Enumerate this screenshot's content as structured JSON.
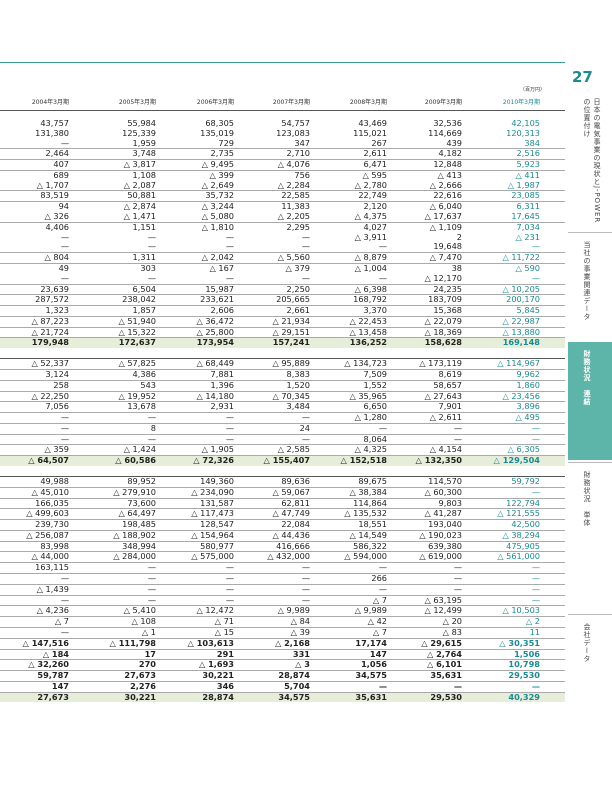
{
  "unit": "（百万円）",
  "headers": [
    "2004年3月期",
    "2005年3月期",
    "2006年3月期",
    "2007年3月期",
    "2008年3月期",
    "2009年3月期",
    "2010年3月期"
  ],
  "rows": [
    [
      "43,757",
      "55,984",
      "68,305",
      "54,757",
      "43,469",
      "32,536",
      "42,105"
    ],
    [
      "131,380",
      "125,339",
      "135,019",
      "123,083",
      "115,021",
      "114,669",
      "120,313"
    ],
    [
      "—",
      "1,959",
      "729",
      "347",
      "267",
      "439",
      "384"
    ],
    [
      "2,464",
      "3,748",
      "2,735",
      "2,710",
      "2,611",
      "4,182",
      "2,516"
    ],
    [
      "407",
      "△ 3,817",
      "△ 9,495",
      "△ 4,076",
      "6,471",
      "12,848",
      "5,923"
    ],
    [
      "689",
      "1,108",
      "△ 399",
      "756",
      "△ 595",
      "△ 413",
      "△ 411"
    ],
    [
      "△ 1,707",
      "△ 2,087",
      "△ 2,649",
      "△ 2,284",
      "△ 2,780",
      "△ 2,666",
      "△ 1,987"
    ],
    [
      "83,519",
      "50,881",
      "35,732",
      "22,585",
      "22,749",
      "22,616",
      "23,085"
    ],
    [
      "94",
      "△ 2,874",
      "△ 3,244",
      "11,383",
      "2,120",
      "△ 6,040",
      "6,311"
    ],
    [
      "△ 326",
      "△ 1,471",
      "△ 5,080",
      "△ 2,205",
      "△ 4,375",
      "△ 17,637",
      "17,645"
    ],
    [
      "4,406",
      "1,151",
      "△ 1,810",
      "2,295",
      "4,027",
      "△ 1,109",
      "7,034"
    ],
    [
      "—",
      "—",
      "—",
      "—",
      "△ 3,911",
      "2",
      "△ 231"
    ],
    [
      "—",
      "—",
      "—",
      "—",
      "—",
      "19,648",
      "—"
    ],
    [
      "△ 804",
      "1,311",
      "△ 2,042",
      "△ 5,560",
      "△ 8,879",
      "△ 7,470",
      "△ 11,722"
    ],
    [
      "49",
      "303",
      "△ 167",
      "△ 379",
      "△ 1,004",
      "38",
      "△ 590"
    ],
    [
      "—",
      "—",
      "—",
      "—",
      "—",
      "△ 12,170",
      "—"
    ],
    [
      "23,639",
      "6,504",
      "15,987",
      "2,250",
      "△ 6,398",
      "24,235",
      "△ 10,205"
    ],
    [
      "287,572",
      "238,042",
      "233,621",
      "205,665",
      "168,792",
      "183,709",
      "200,170"
    ],
    [
      "1,323",
      "1,857",
      "2,606",
      "2,661",
      "3,370",
      "15,368",
      "5,845"
    ],
    [
      "△ 87,223",
      "△ 51,940",
      "△ 36,472",
      "△ 21,934",
      "△ 22,453",
      "△ 22,079",
      "△ 22,987"
    ],
    [
      "△ 21,724",
      "△ 15,322",
      "△ 25,800",
      "△ 29,151",
      "△ 13,458",
      "△ 18,369",
      "△ 13,880"
    ],
    [
      "179,948",
      "172,637",
      "173,954",
      "157,241",
      "136,252",
      "158,628",
      "169,148"
    ],
    [
      "",
      "",
      "",
      "",
      "",
      "",
      ""
    ],
    [
      "△ 52,337",
      "△ 57,825",
      "△ 68,449",
      "△ 95,889",
      "△ 134,723",
      "△ 173,119",
      "△ 114,967"
    ],
    [
      "3,124",
      "4,386",
      "7,881",
      "8,383",
      "7,509",
      "8,619",
      "9,962"
    ],
    [
      "258",
      "543",
      "1,396",
      "1,520",
      "1,552",
      "58,657",
      "1,860"
    ],
    [
      "△ 22,250",
      "△ 19,952",
      "△ 14,180",
      "△ 70,345",
      "△ 35,965",
      "△ 27,643",
      "△ 23,456"
    ],
    [
      "7,056",
      "13,678",
      "2,931",
      "3,484",
      "6,650",
      "7,901",
      "3,896"
    ],
    [
      "—",
      "—",
      "—",
      "—",
      "△ 1,280",
      "△ 2,611",
      "△ 495"
    ],
    [
      "—",
      "8",
      "—",
      "24",
      "—",
      "—",
      "—"
    ],
    [
      "—",
      "—",
      "—",
      "—",
      "8,064",
      "—",
      "—"
    ],
    [
      "△ 359",
      "△ 1,424",
      "△ 1,905",
      "△ 2,585",
      "△ 4,325",
      "△ 4,154",
      "△ 6,305"
    ],
    [
      "△ 64,507",
      "△ 60,586",
      "△ 72,326",
      "△ 155,407",
      "△ 152,518",
      "△ 132,350",
      "△ 129,504"
    ],
    [
      "",
      "",
      "",
      "",
      "",
      "",
      ""
    ],
    [
      "49,988",
      "89,952",
      "149,360",
      "89,636",
      "89,675",
      "114,570",
      "59,792"
    ],
    [
      "△ 45,010",
      "△ 279,910",
      "△ 234,090",
      "△ 59,067",
      "△ 38,384",
      "△ 60,300",
      "—"
    ],
    [
      "166,035",
      "73,600",
      "131,587",
      "62,811",
      "114,864",
      "9,803",
      "122,794"
    ],
    [
      "△ 499,603",
      "△ 64,497",
      "△ 117,473",
      "△ 47,749",
      "△ 135,532",
      "△ 41,287",
      "△ 121,555"
    ],
    [
      "239,730",
      "198,485",
      "128,547",
      "22,084",
      "18,551",
      "193,040",
      "42,500"
    ],
    [
      "△ 256,087",
      "△ 188,902",
      "△ 154,964",
      "△ 44,436",
      "△ 14,549",
      "△ 190,023",
      "△ 38,294"
    ],
    [
      "83,998",
      "348,994",
      "580,977",
      "416,666",
      "586,322",
      "639,380",
      "475,905"
    ],
    [
      "△ 44,000",
      "△ 284,000",
      "△ 575,000",
      "△ 432,000",
      "△ 594,000",
      "△ 619,000",
      "△ 561,000"
    ],
    [
      "163,115",
      "—",
      "—",
      "—",
      "—",
      "—",
      "—"
    ],
    [
      "—",
      "—",
      "—",
      "—",
      "266",
      "—",
      "—"
    ],
    [
      "△ 1,439",
      "—",
      "—",
      "—",
      "—",
      "—",
      "—"
    ],
    [
      "—",
      "—",
      "—",
      "—",
      "△ 7",
      "△ 63,195",
      "—"
    ],
    [
      "△ 4,236",
      "△ 5,410",
      "△ 12,472",
      "△ 9,989",
      "△ 9,989",
      "△ 12,499",
      "△ 10,503"
    ],
    [
      "△ 7",
      "△ 108",
      "△ 71",
      "△ 84",
      "△ 42",
      "△ 20",
      "△ 2"
    ],
    [
      "—",
      "△ 1",
      "△ 15",
      "△ 39",
      "△ 7",
      "△ 83",
      "11"
    ],
    [
      "△ 147,516",
      "△ 111,798",
      "△ 103,613",
      "△ 2,168",
      "17,174",
      "△ 29,615",
      "△ 30,351"
    ],
    [
      "△ 184",
      "17",
      "291",
      "331",
      "147",
      "△ 2,764",
      "1,506"
    ],
    [
      "△ 32,260",
      "270",
      "△ 1,693",
      "△ 3",
      "1,056",
      "△ 6,101",
      "10,798"
    ],
    [
      "59,787",
      "27,673",
      "30,221",
      "28,874",
      "34,575",
      "35,631",
      "29,530"
    ],
    [
      "147",
      "2,276",
      "346",
      "5,704",
      "—",
      "—",
      "—"
    ],
    [
      "27,673",
      "30,221",
      "28,874",
      "34,575",
      "35,631",
      "29,530",
      "40,329"
    ]
  ],
  "side": {
    "page_number": "27",
    "tabs": [
      "日本の電気事業の現状とJ-POWERの位置付け",
      "当社の事業関連データ",
      "財務状況　連結",
      "財務状況　単体",
      "会社データ"
    ]
  }
}
